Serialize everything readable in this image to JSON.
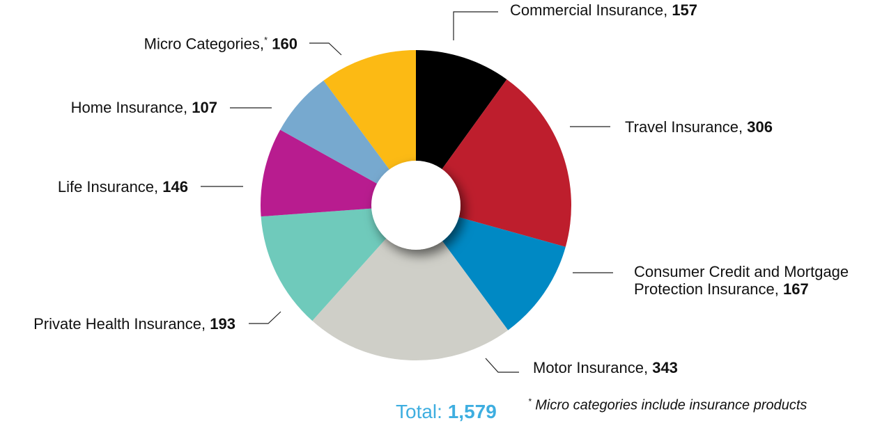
{
  "chart_data": {
    "type": "donut",
    "categories": [
      "Commercial Insurance,",
      "Travel Insurance,",
      "Consumer Credit and Mortgage Protection Insurance,",
      "Motor Insurance,",
      "Private Health Insurance,",
      "Life Insurance,",
      "Home Insurance,",
      "Micro Categories,"
    ],
    "values": [
      157,
      306,
      167,
      343,
      193,
      146,
      107,
      160
    ],
    "colors": [
      "#000000",
      "#be1e2d",
      "#0089c4",
      "#cfcfc8",
      "#6fcabb",
      "#b81c8f",
      "#77a9cf",
      "#fcba14"
    ],
    "footnote_marker": "*",
    "total": {
      "label": "Total:",
      "value": 1579,
      "value_label": "1,579"
    },
    "footnote": "Micro categories include insurance products"
  }
}
